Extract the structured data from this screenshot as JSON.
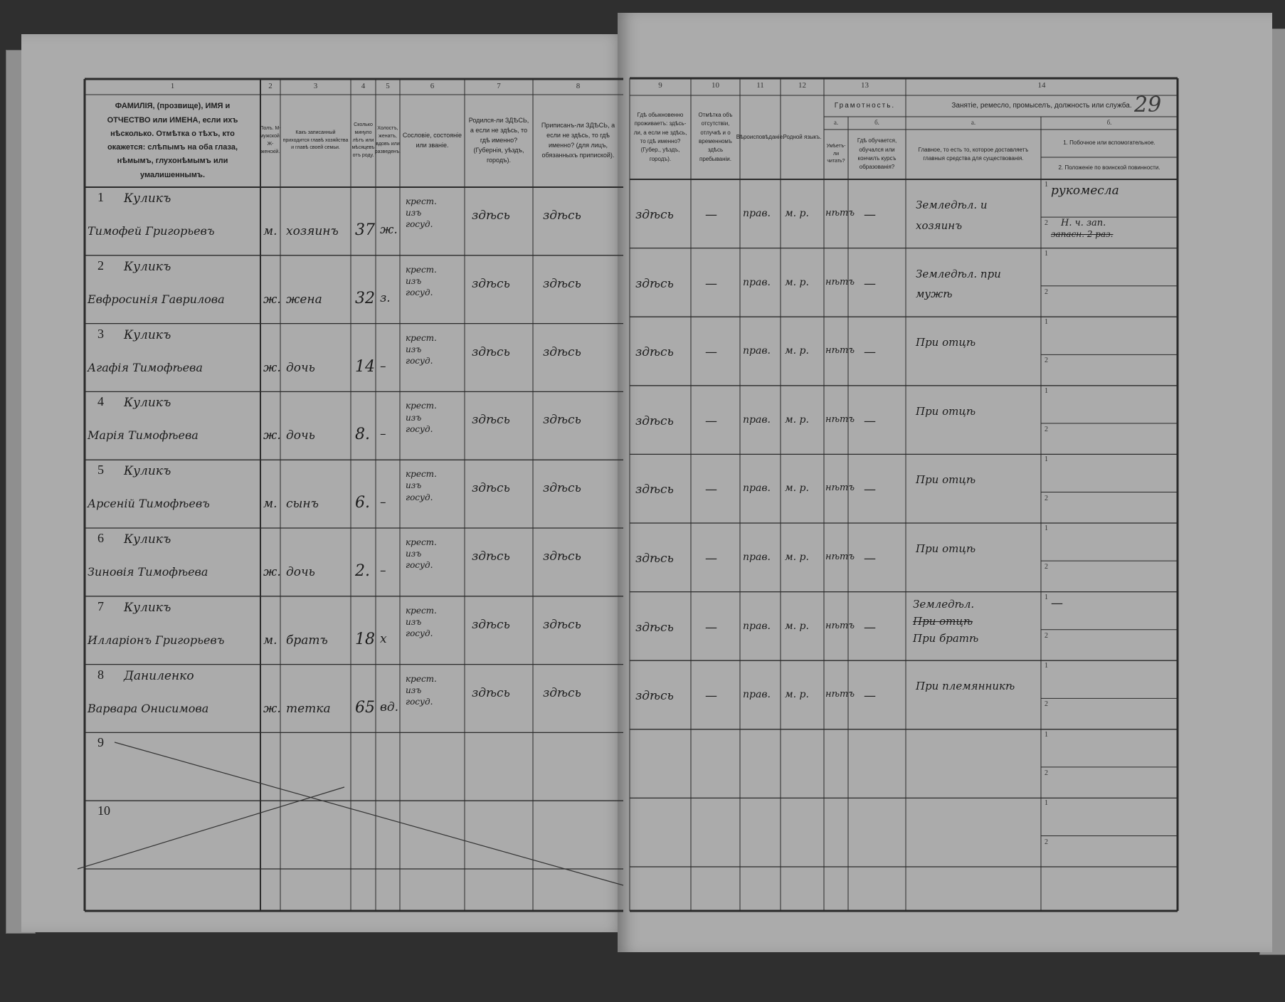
{
  "page_number": "29",
  "header": {
    "left_columns": [
      {
        "num": "1",
        "text": "ФАМИЛІЯ, (прозвище), ИМЯ и ОТЧЕСТВО или ИМЕНА, если ихъ нѣсколько. Отмѣтка о тѣхъ, кто окажется: слѣпымъ на оба глаза, нѣмымъ, глухонѣмымъ или умалишеннымъ."
      },
      {
        "num": "2",
        "text": "Полъ. М-мужской. Ж-женскій."
      },
      {
        "num": "3",
        "text": "Какъ записанный приходится главѣ хозяйства и главѣ своей семьи."
      },
      {
        "num": "4",
        "text": "Сколько минуло лѣтъ или мѣсяцевъ отъ роду."
      },
      {
        "num": "5",
        "text": "Холостъ, женатъ, вдовъ или разведенъ."
      },
      {
        "num": "6",
        "text": "Сословіе, состояніе или званіе."
      },
      {
        "num": "7",
        "text": "Родился-ли ЗДѢСЬ, а если не здѣсь, то гдѣ именно? (Губернія, уѣздъ, городъ)."
      },
      {
        "num": "8",
        "text": "Приписанъ-ли ЗДѢСЬ, а если не здѣсь, то гдѣ именно? (для лицъ, обязанныхъ припиской)."
      }
    ],
    "right_columns": [
      {
        "num": "9",
        "text": "Гдѣ обыкновенно проживаетъ: здѣсь-ли, а если не здѣсь, то гдѣ именно? (Губер., уѣздъ, городъ)."
      },
      {
        "num": "10",
        "text": "Отмѣтка объ отсутствіи, отлучкѣ и о временномъ здѣсь пребываніи."
      },
      {
        "num": "11",
        "text": "Вѣроисповѣданіе."
      },
      {
        "num": "12",
        "text": "Родной языкъ."
      }
    ],
    "col13": {
      "num": "13",
      "title": "Грамотность.",
      "a_label": "а.",
      "b_label": "б.",
      "a_text": "Умѣетъ-ли читать?",
      "b_text": "Гдѣ обучается, обучался или кончилъ курсъ образованія?"
    },
    "col14": {
      "num": "14",
      "title": "Занятіе, ремесло, промыселъ, должность или служба.",
      "a_label": "а.",
      "b_label": "б.",
      "a_text": "Главное, то есть то, которое доставляетъ главныя средства для существованія.",
      "b_text_1": "1. Побочное или вспомогательное.",
      "b_text_2": "2. Положеніе по воинской повинности."
    }
  },
  "sub_markers": {
    "one": "1",
    "two": "2"
  },
  "rows": [
    {
      "n": "1",
      "surname": "Куликъ",
      "name": "Тимофей Григорьевъ",
      "sex": "м.",
      "relation": "хозяинъ",
      "age": "37",
      "marital": "ж.",
      "estate": "крест. изъ госуд.",
      "born": "здѣсь",
      "registered": "здѣсь",
      "residence": "здѣсь",
      "absence": "—",
      "religion": "прав.",
      "language": "м. р.",
      "literate": "нѣтъ",
      "education": "—",
      "occupation_main": "Земледѣл. и хозяинъ",
      "occupation_side": "рукомесла",
      "military": "Н. ч. зап.",
      "military_struck": "запасн. 2 раз."
    },
    {
      "n": "2",
      "surname": "Куликъ",
      "name": "Евфросинія Гаврилова",
      "sex": "ж.",
      "relation": "жена",
      "age": "32",
      "marital": "з.",
      "estate": "крест. изъ госуд.",
      "born": "здѣсь",
      "registered": "здѣсь",
      "residence": "здѣсь",
      "absence": "—",
      "religion": "прав.",
      "language": "м. р.",
      "literate": "нѣтъ",
      "education": "—",
      "occupation_main": "Земледѣл. при мужѣ"
    },
    {
      "n": "3",
      "surname": "Куликъ",
      "name": "Агафія Тимофѣева",
      "sex": "ж.",
      "relation": "дочь",
      "age": "14",
      "marital": "–",
      "estate": "крест. изъ госуд.",
      "born": "здѣсь",
      "registered": "здѣсь",
      "residence": "здѣсь",
      "absence": "—",
      "religion": "прав.",
      "language": "м. р.",
      "literate": "нѣтъ",
      "education": "—",
      "occupation_main": "При отцѣ"
    },
    {
      "n": "4",
      "surname": "Куликъ",
      "name": "Марія Тимофѣева",
      "sex": "ж.",
      "relation": "дочь",
      "age": "8.",
      "marital": "–",
      "estate": "крест. изъ госуд.",
      "born": "здѣсь",
      "registered": "здѣсь",
      "residence": "здѣсь",
      "absence": "—",
      "religion": "прав.",
      "language": "м. р.",
      "literate": "нѣтъ",
      "education": "—",
      "occupation_main": "При отцѣ"
    },
    {
      "n": "5",
      "surname": "Куликъ",
      "name": "Арсеній Тимофѣевъ",
      "sex": "м.",
      "relation": "сынъ",
      "age": "6.",
      "marital": "–",
      "estate": "крест. изъ госуд.",
      "born": "здѣсь",
      "registered": "здѣсь",
      "residence": "здѣсь",
      "absence": "—",
      "religion": "прав.",
      "language": "м. р.",
      "literate": "нѣтъ",
      "education": "—",
      "occupation_main": "При отцѣ"
    },
    {
      "n": "6",
      "surname": "Куликъ",
      "name": "Зиновія Тимофѣева",
      "sex": "ж.",
      "relation": "дочь",
      "age": "2.",
      "marital": "–",
      "estate": "крест. изъ госуд.",
      "born": "здѣсь",
      "registered": "здѣсь",
      "residence": "здѣсь",
      "absence": "—",
      "religion": "прав.",
      "language": "м. р.",
      "literate": "нѣтъ",
      "education": "—",
      "occupation_main": "При отцѣ"
    },
    {
      "n": "7",
      "surname": "Куликъ",
      "name": "Илларіонъ Григорьевъ",
      "sex": "м.",
      "relation": "братъ",
      "age": "18",
      "marital": "х",
      "estate": "крест. изъ госуд.",
      "born": "здѣсь",
      "registered": "здѣсь",
      "residence": "здѣсь",
      "absence": "—",
      "religion": "прав.",
      "language": "м. р.",
      "literate": "нѣтъ",
      "education": "—",
      "occupation_main": "Земледѣл.",
      "occupation_struck": "При отцѣ",
      "occupation_extra": "При братѣ",
      "occupation_side": "—"
    },
    {
      "n": "8",
      "surname": "Даниленко",
      "name": "Варвара Онисимова",
      "sex": "ж.",
      "relation": "тетка",
      "age": "65",
      "marital": "вд.",
      "estate": "крест. изъ госуд.",
      "born": "здѣсь",
      "registered": "здѣсь",
      "residence": "здѣсь",
      "absence": "—",
      "religion": "прав.",
      "language": "м. р.",
      "literate": "нѣтъ",
      "education": "—",
      "occupation_main": "При племянникѣ"
    },
    {
      "n": "9"
    },
    {
      "n": "10"
    }
  ]
}
